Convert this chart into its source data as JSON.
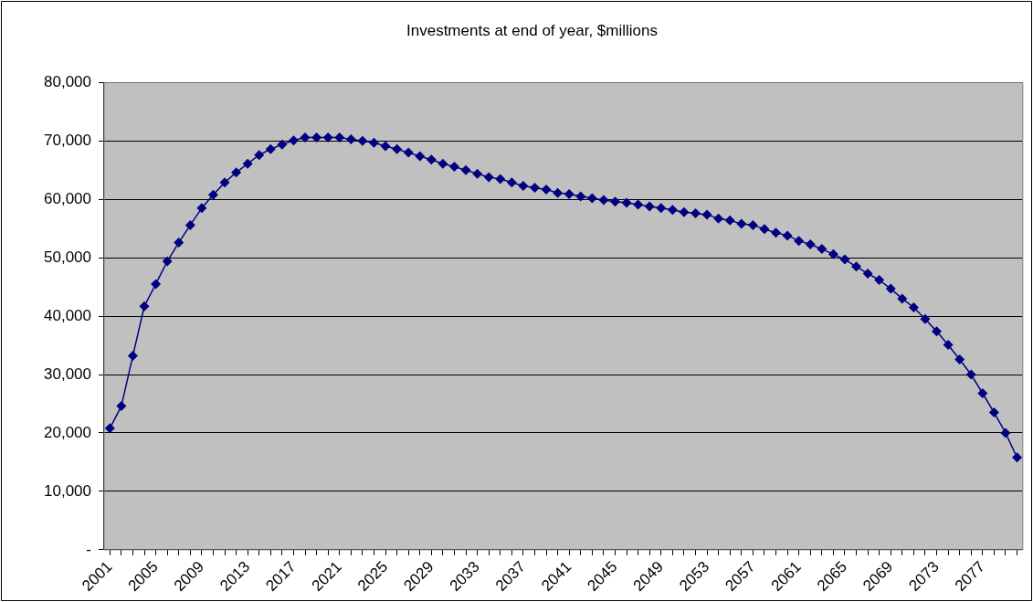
{
  "chart_data": {
    "type": "line",
    "title": "Investments at end of year, $millions",
    "categories": [
      "2001",
      null,
      null,
      null,
      "2005",
      null,
      null,
      null,
      "2009",
      null,
      null,
      null,
      "2013",
      null,
      null,
      null,
      "2017",
      null,
      null,
      null,
      "2021",
      null,
      null,
      null,
      "2025",
      null,
      null,
      null,
      "2029",
      null,
      null,
      null,
      "2033",
      null,
      null,
      null,
      "2037",
      null,
      null,
      null,
      "2041",
      null,
      null,
      null,
      "2045",
      null,
      null,
      null,
      "2049",
      null,
      null,
      null,
      "2053",
      null,
      null,
      null,
      "2057",
      null,
      null,
      null,
      "2061",
      null,
      null,
      null,
      "2065",
      null,
      null,
      null,
      "2069",
      null,
      null,
      null,
      "2073",
      null,
      null,
      null,
      "2077",
      null,
      null,
      null
    ],
    "values": [
      20800,
      24600,
      33200,
      41700,
      45500,
      49400,
      52600,
      55600,
      58500,
      60800,
      62900,
      64600,
      66100,
      67600,
      68600,
      69400,
      70100,
      70600,
      70600,
      70600,
      70600,
      70300,
      70000,
      69700,
      69100,
      68600,
      68000,
      67400,
      66800,
      66100,
      65600,
      65000,
      64400,
      63800,
      63500,
      62900,
      62300,
      62000,
      61700,
      61100,
      60900,
      60500,
      60200,
      59900,
      59600,
      59400,
      59100,
      58800,
      58500,
      58200,
      57800,
      57600,
      57400,
      56700,
      56400,
      55800,
      55600,
      54900,
      54300,
      53800,
      52900,
      52300,
      51500,
      50600,
      49700,
      48500,
      47300,
      46200,
      44700,
      43000,
      41500,
      39500,
      37400,
      35100,
      32600,
      30000,
      26800,
      23500,
      20000,
      15800
    ],
    "color": "#000080",
    "ylim": [
      0,
      80000
    ],
    "yticks": [
      {
        "value": 0,
        "label": "-"
      },
      {
        "value": 10000,
        "label": "10,000"
      },
      {
        "value": 20000,
        "label": "20,000"
      },
      {
        "value": 30000,
        "label": "30,000"
      },
      {
        "value": 40000,
        "label": "40,000"
      },
      {
        "value": 50000,
        "label": "50,000"
      },
      {
        "value": 60000,
        "label": "60,000"
      },
      {
        "value": 70000,
        "label": "70,000"
      },
      {
        "value": 80000,
        "label": "80,000"
      }
    ],
    "grid": "y",
    "marker": "diamond",
    "line_style": "solid"
  }
}
